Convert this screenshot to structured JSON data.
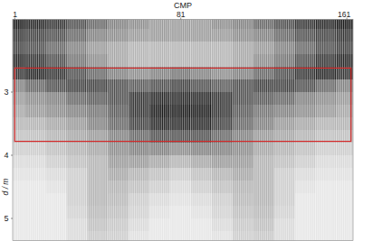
{
  "chart_data": {
    "type": "heatmap",
    "x_label": "CMP",
    "y_label": "d / m",
    "xlim": [
      0,
      164
    ],
    "xticks": [
      1,
      81,
      161
    ],
    "ylim": [
      1.85,
      5.35
    ],
    "yticks": [
      3,
      4,
      5
    ],
    "x": [
      1,
      11,
      21,
      31,
      41,
      51,
      61,
      71,
      81,
      91,
      101,
      111,
      121,
      131,
      141,
      151,
      161
    ],
    "y": [
      1.9,
      2.1,
      2.3,
      2.5,
      2.7,
      2.9,
      3.1,
      3.3,
      3.5,
      3.7,
      3.9,
      4.1,
      4.3,
      4.5,
      4.7,
      4.9,
      5.1,
      5.3
    ],
    "cells": [
      [
        0.9,
        0.85,
        0.8,
        0.7,
        0.6,
        0.5,
        0.45,
        0.4,
        0.4,
        0.4,
        0.45,
        0.5,
        0.6,
        0.7,
        0.8,
        0.85,
        0.9
      ],
      [
        0.8,
        0.75,
        0.7,
        0.6,
        0.5,
        0.45,
        0.4,
        0.4,
        0.4,
        0.4,
        0.4,
        0.45,
        0.5,
        0.6,
        0.7,
        0.75,
        0.8
      ],
      [
        0.75,
        0.7,
        0.6,
        0.5,
        0.4,
        0.35,
        0.3,
        0.3,
        0.3,
        0.3,
        0.3,
        0.35,
        0.4,
        0.5,
        0.6,
        0.7,
        0.75
      ],
      [
        0.85,
        0.8,
        0.7,
        0.55,
        0.45,
        0.35,
        0.3,
        0.3,
        0.3,
        0.3,
        0.3,
        0.35,
        0.45,
        0.55,
        0.7,
        0.8,
        0.85
      ],
      [
        0.8,
        0.85,
        0.8,
        0.7,
        0.6,
        0.5,
        0.45,
        0.5,
        0.55,
        0.5,
        0.45,
        0.5,
        0.6,
        0.7,
        0.8,
        0.85,
        0.8
      ],
      [
        0.5,
        0.6,
        0.7,
        0.75,
        0.75,
        0.7,
        0.65,
        0.7,
        0.75,
        0.7,
        0.65,
        0.7,
        0.75,
        0.75,
        0.7,
        0.6,
        0.5
      ],
      [
        0.4,
        0.45,
        0.5,
        0.6,
        0.65,
        0.7,
        0.8,
        0.85,
        0.85,
        0.85,
        0.8,
        0.7,
        0.65,
        0.6,
        0.5,
        0.45,
        0.4
      ],
      [
        0.35,
        0.4,
        0.45,
        0.5,
        0.55,
        0.65,
        0.8,
        0.9,
        0.9,
        0.9,
        0.8,
        0.65,
        0.55,
        0.5,
        0.45,
        0.4,
        0.35
      ],
      [
        0.3,
        0.3,
        0.35,
        0.4,
        0.5,
        0.6,
        0.75,
        0.85,
        0.85,
        0.85,
        0.75,
        0.6,
        0.5,
        0.4,
        0.35,
        0.3,
        0.3
      ],
      [
        0.25,
        0.25,
        0.3,
        0.35,
        0.4,
        0.5,
        0.6,
        0.7,
        0.7,
        0.7,
        0.6,
        0.5,
        0.4,
        0.35,
        0.3,
        0.25,
        0.25
      ],
      [
        0.2,
        0.2,
        0.25,
        0.3,
        0.35,
        0.45,
        0.5,
        0.5,
        0.45,
        0.5,
        0.5,
        0.45,
        0.35,
        0.3,
        0.25,
        0.2,
        0.2
      ],
      [
        0.15,
        0.15,
        0.2,
        0.25,
        0.3,
        0.4,
        0.4,
        0.35,
        0.3,
        0.35,
        0.4,
        0.4,
        0.3,
        0.25,
        0.2,
        0.15,
        0.15
      ],
      [
        0.12,
        0.12,
        0.15,
        0.2,
        0.3,
        0.35,
        0.3,
        0.25,
        0.2,
        0.25,
        0.3,
        0.35,
        0.3,
        0.2,
        0.15,
        0.12,
        0.12
      ],
      [
        0.1,
        0.1,
        0.12,
        0.2,
        0.3,
        0.3,
        0.25,
        0.2,
        0.15,
        0.2,
        0.25,
        0.3,
        0.3,
        0.2,
        0.12,
        0.1,
        0.1
      ],
      [
        0.1,
        0.1,
        0.1,
        0.2,
        0.3,
        0.28,
        0.2,
        0.15,
        0.12,
        0.15,
        0.2,
        0.28,
        0.3,
        0.2,
        0.1,
        0.1,
        0.1
      ],
      [
        0.1,
        0.1,
        0.1,
        0.18,
        0.28,
        0.25,
        0.18,
        0.12,
        0.1,
        0.12,
        0.18,
        0.25,
        0.28,
        0.18,
        0.1,
        0.1,
        0.1
      ],
      [
        0.1,
        0.1,
        0.1,
        0.15,
        0.25,
        0.22,
        0.15,
        0.1,
        0.1,
        0.1,
        0.15,
        0.22,
        0.25,
        0.15,
        0.1,
        0.1,
        0.1
      ],
      [
        0.1,
        0.1,
        0.1,
        0.15,
        0.22,
        0.2,
        0.12,
        0.1,
        0.1,
        0.1,
        0.12,
        0.2,
        0.22,
        0.15,
        0.1,
        0.1,
        0.1
      ]
    ],
    "box": {
      "x": [
        1,
        163
      ],
      "y": [
        2.62,
        3.78
      ],
      "color": "#d42a2a"
    }
  }
}
